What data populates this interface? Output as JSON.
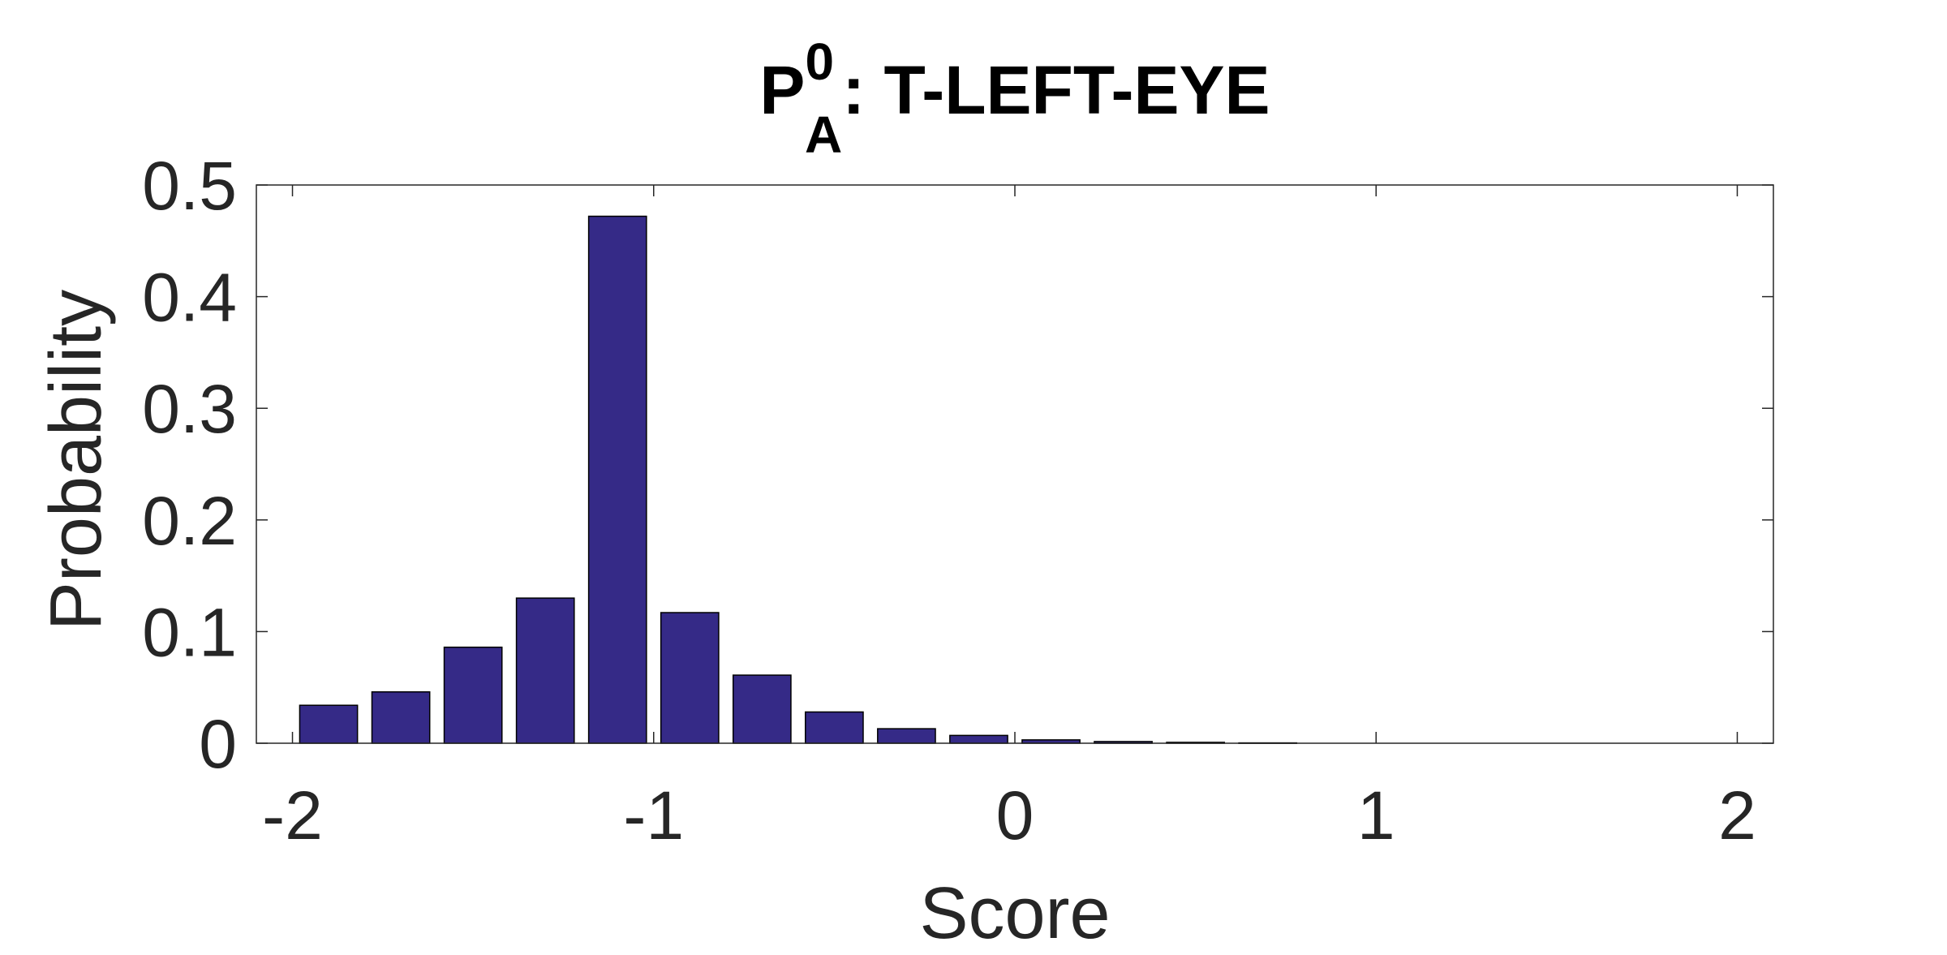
{
  "chart_data": {
    "type": "bar",
    "title": {
      "main": "P",
      "superscript": "0",
      "subscript": "A",
      "rest": ": T-LEFT-EYE"
    },
    "xlabel": "Score",
    "ylabel": "Probability",
    "xlim": [
      -2.1,
      2.1
    ],
    "ylim": [
      0,
      0.5
    ],
    "xticks": [
      -2,
      -1,
      0,
      1,
      2
    ],
    "xtick_labels": [
      "-2",
      "-1",
      "0",
      "1",
      "2"
    ],
    "yticks": [
      0,
      0.1,
      0.2,
      0.3,
      0.4,
      0.5
    ],
    "ytick_labels": [
      "0",
      "0.1",
      "0.2",
      "0.3",
      "0.4",
      "0.5"
    ],
    "bin_width": 0.2,
    "bar_color": "#352A87",
    "grid": false,
    "bars": [
      {
        "x": -1.9,
        "y": 0.034
      },
      {
        "x": -1.7,
        "y": 0.046
      },
      {
        "x": -1.5,
        "y": 0.086
      },
      {
        "x": -1.3,
        "y": 0.13
      },
      {
        "x": -1.1,
        "y": 0.472
      },
      {
        "x": -0.9,
        "y": 0.117
      },
      {
        "x": -0.7,
        "y": 0.061
      },
      {
        "x": -0.5,
        "y": 0.028
      },
      {
        "x": -0.3,
        "y": 0.013
      },
      {
        "x": -0.1,
        "y": 0.007
      },
      {
        "x": 0.1,
        "y": 0.003
      },
      {
        "x": 0.3,
        "y": 0.0015
      },
      {
        "x": 0.5,
        "y": 0.0008
      },
      {
        "x": 0.7,
        "y": 0.0003
      }
    ]
  }
}
